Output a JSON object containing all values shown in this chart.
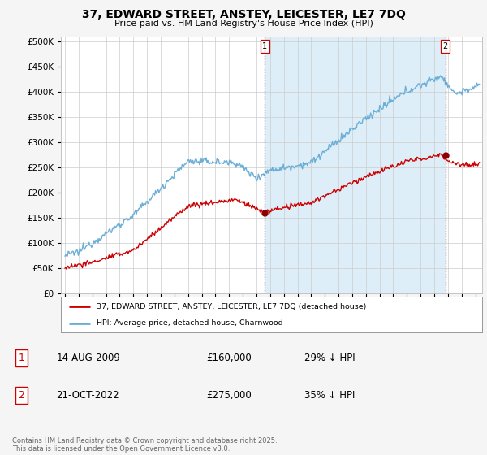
{
  "title": "37, EDWARD STREET, ANSTEY, LEICESTER, LE7 7DQ",
  "subtitle": "Price paid vs. HM Land Registry's House Price Index (HPI)",
  "ytick_values": [
    0,
    50000,
    100000,
    150000,
    200000,
    250000,
    300000,
    350000,
    400000,
    450000,
    500000
  ],
  "ylim": [
    0,
    510000
  ],
  "xlim_start": 1994.7,
  "xlim_end": 2025.5,
  "hpi_color": "#6baed6",
  "hpi_fill_color": "#ddeef8",
  "price_color": "#cc0000",
  "vline_color": "#cc0000",
  "vline_style": ":",
  "marker1_x": 2009.62,
  "marker1_y": 160000,
  "marker2_x": 2022.8,
  "marker2_y": 275000,
  "marker_color": "#8b0000",
  "legend_property_label": "37, EDWARD STREET, ANSTEY, LEICESTER, LE7 7DQ (detached house)",
  "legend_hpi_label": "HPI: Average price, detached house, Charnwood",
  "table_rows": [
    {
      "num": "1",
      "date": "14-AUG-2009",
      "price": "£160,000",
      "hpi_diff": "29% ↓ HPI"
    },
    {
      "num": "2",
      "date": "21-OCT-2022",
      "price": "£275,000",
      "hpi_diff": "35% ↓ HPI"
    }
  ],
  "footnote": "Contains HM Land Registry data © Crown copyright and database right 2025.\nThis data is licensed under the Open Government Licence v3.0.",
  "background_color": "#f5f5f5",
  "plot_bg_color": "#ffffff",
  "grid_color": "#cccccc"
}
